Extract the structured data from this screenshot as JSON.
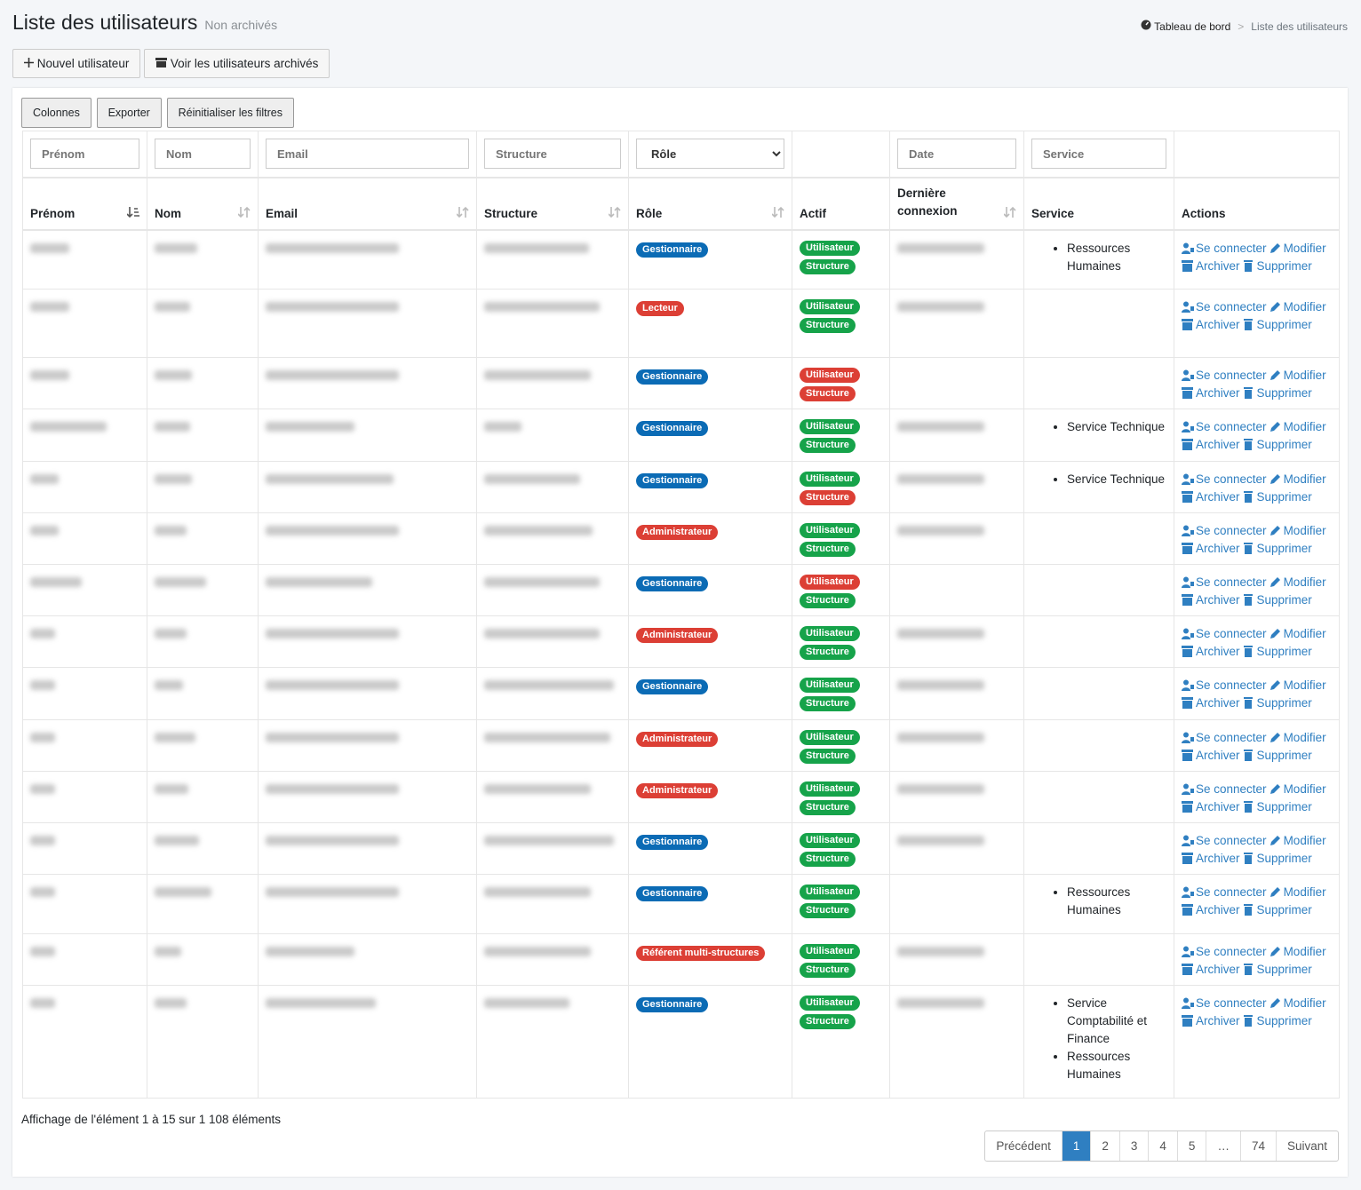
{
  "header": {
    "title": "Liste des utilisateurs",
    "subtitle": "Non archivés",
    "breadcrumb": [
      "Tableau de bord",
      ">",
      "Liste des utilisateurs"
    ]
  },
  "buttons": [
    "Nouvel utilisateur",
    "Voir les utilisateurs archivés"
  ],
  "toolbar": [
    "Colonnes",
    "Exporter",
    "Réinitialiser les filtres"
  ],
  "filters": [
    "Prénom",
    "Nom",
    "Email",
    "Structure",
    "Rôle",
    "Date",
    "Service"
  ],
  "columns": [
    "Prénom",
    "Nom",
    "Email",
    "Structure",
    "Rôle",
    "Actif",
    "Dernière connexion",
    "Service",
    "Actions"
  ],
  "badges": [
    "Utilisateur",
    "Structure"
  ],
  "actions": [
    "Se connecter",
    "Modifier",
    "Archiver",
    "Supprimer"
  ],
  "rows": [
    {
      "role": "Gestionnaire",
      "role_color": "#0b6bb5",
      "actif_colors": [
        "#16a34a",
        "#16a34a"
      ],
      "services": [
        "Ressources Humaines"
      ]
    },
    {
      "role": "Lecteur",
      "role_color": "#dc3f35",
      "actif_colors": [
        "#16a34a",
        "#16a34a"
      ],
      "services": []
    },
    {
      "role": "Gestionnaire",
      "role_color": "#0b6bb5",
      "actif_colors": [
        "#dc3f35",
        "#dc3f35"
      ],
      "services": []
    },
    {
      "role": "Gestionnaire",
      "role_color": "#0b6bb5",
      "actif_colors": [
        "#16a34a",
        "#16a34a"
      ],
      "services": [
        "Service Technique"
      ]
    },
    {
      "role": "Gestionnaire",
      "role_color": "#0b6bb5",
      "actif_colors": [
        "#16a34a",
        "#dc3f35"
      ],
      "services": [
        "Service Technique"
      ]
    },
    {
      "role": "Administrateur",
      "role_color": "#dc3f35",
      "actif_colors": [
        "#16a34a",
        "#16a34a"
      ],
      "services": []
    },
    {
      "role": "Gestionnaire",
      "role_color": "#0b6bb5",
      "actif_colors": [
        "#dc3f35",
        "#16a34a"
      ],
      "services": []
    },
    {
      "role": "Administrateur",
      "role_color": "#dc3f35",
      "actif_colors": [
        "#16a34a",
        "#16a34a"
      ],
      "services": []
    },
    {
      "role": "Gestionnaire",
      "role_color": "#0b6bb5",
      "actif_colors": [
        "#16a34a",
        "#16a34a"
      ],
      "services": []
    },
    {
      "role": "Administrateur",
      "role_color": "#dc3f35",
      "actif_colors": [
        "#16a34a",
        "#16a34a"
      ],
      "services": []
    },
    {
      "role": "Administrateur",
      "role_color": "#dc3f35",
      "actif_colors": [
        "#16a34a",
        "#16a34a"
      ],
      "services": []
    },
    {
      "role": "Gestionnaire",
      "role_color": "#0b6bb5",
      "actif_colors": [
        "#16a34a",
        "#16a34a"
      ],
      "services": []
    },
    {
      "role": "Gestionnaire",
      "role_color": "#0b6bb5",
      "actif_colors": [
        "#16a34a",
        "#16a34a"
      ],
      "services": [
        "Ressources Humaines"
      ]
    },
    {
      "role": "Référent multi-structures",
      "role_color": "#dc3f35",
      "actif_colors": [
        "#16a34a",
        "#16a34a"
      ],
      "services": []
    },
    {
      "role": "Gestionnaire",
      "role_color": "#0b6bb5",
      "actif_colors": [
        "#16a34a",
        "#16a34a"
      ],
      "services": [
        "Service Comptabilité et Finance",
        "Ressources Humaines"
      ]
    }
  ],
  "footer": {
    "info": "Affichage de l'élément 1 à 15 sur 1 108 éléments",
    "pagination": [
      "Précédent",
      "1",
      "2",
      "3",
      "4",
      "5",
      "…",
      "74",
      "Suivant"
    ]
  }
}
